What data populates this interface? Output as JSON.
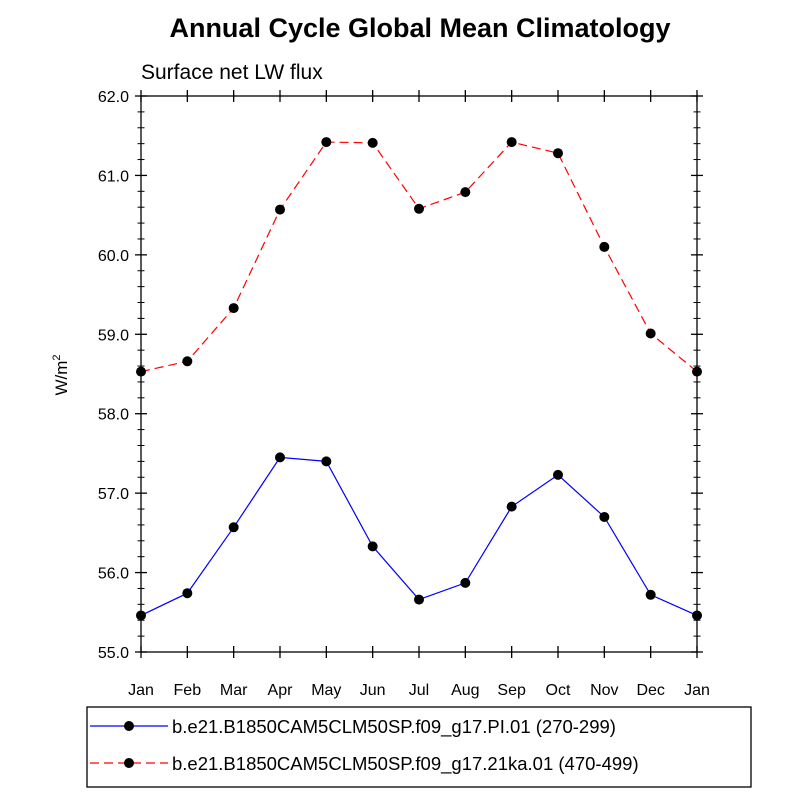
{
  "chart_data": {
    "type": "line",
    "title": "Annual Cycle Global Mean Climatology",
    "subtitle": "Surface net LW flux",
    "xlabel": "",
    "ylabel": "W/m",
    "ylabel_superscript": "2",
    "categories": [
      "Jan",
      "Feb",
      "Mar",
      "Apr",
      "May",
      "Jun",
      "Jul",
      "Aug",
      "Sep",
      "Oct",
      "Nov",
      "Dec",
      "Jan"
    ],
    "ylim": [
      55.0,
      62.0
    ],
    "yticks": [
      "55.0",
      "56.0",
      "57.0",
      "58.0",
      "59.0",
      "60.0",
      "61.0",
      "62.0"
    ],
    "grid": false,
    "legend_position": "bottom",
    "series": [
      {
        "name": "b.e21.B1850CAM5CLM50SP.f09_g17.PI.01 (270-299)",
        "color": "#0000ff",
        "line_style": "solid",
        "marker": "filled-circle",
        "values": [
          55.46,
          55.74,
          56.57,
          57.45,
          57.4,
          56.33,
          55.66,
          55.87,
          56.83,
          57.23,
          56.7,
          55.72,
          55.46
        ]
      },
      {
        "name": "b.e21.B1850CAM5CLM50SP.f09_g17.21ka.01 (470-499)",
        "color": "#ff0000",
        "line_style": "dashed",
        "marker": "filled-circle",
        "values": [
          58.53,
          58.66,
          59.33,
          60.57,
          61.42,
          61.41,
          60.58,
          60.79,
          61.42,
          61.28,
          60.1,
          59.01,
          58.53
        ]
      }
    ]
  }
}
